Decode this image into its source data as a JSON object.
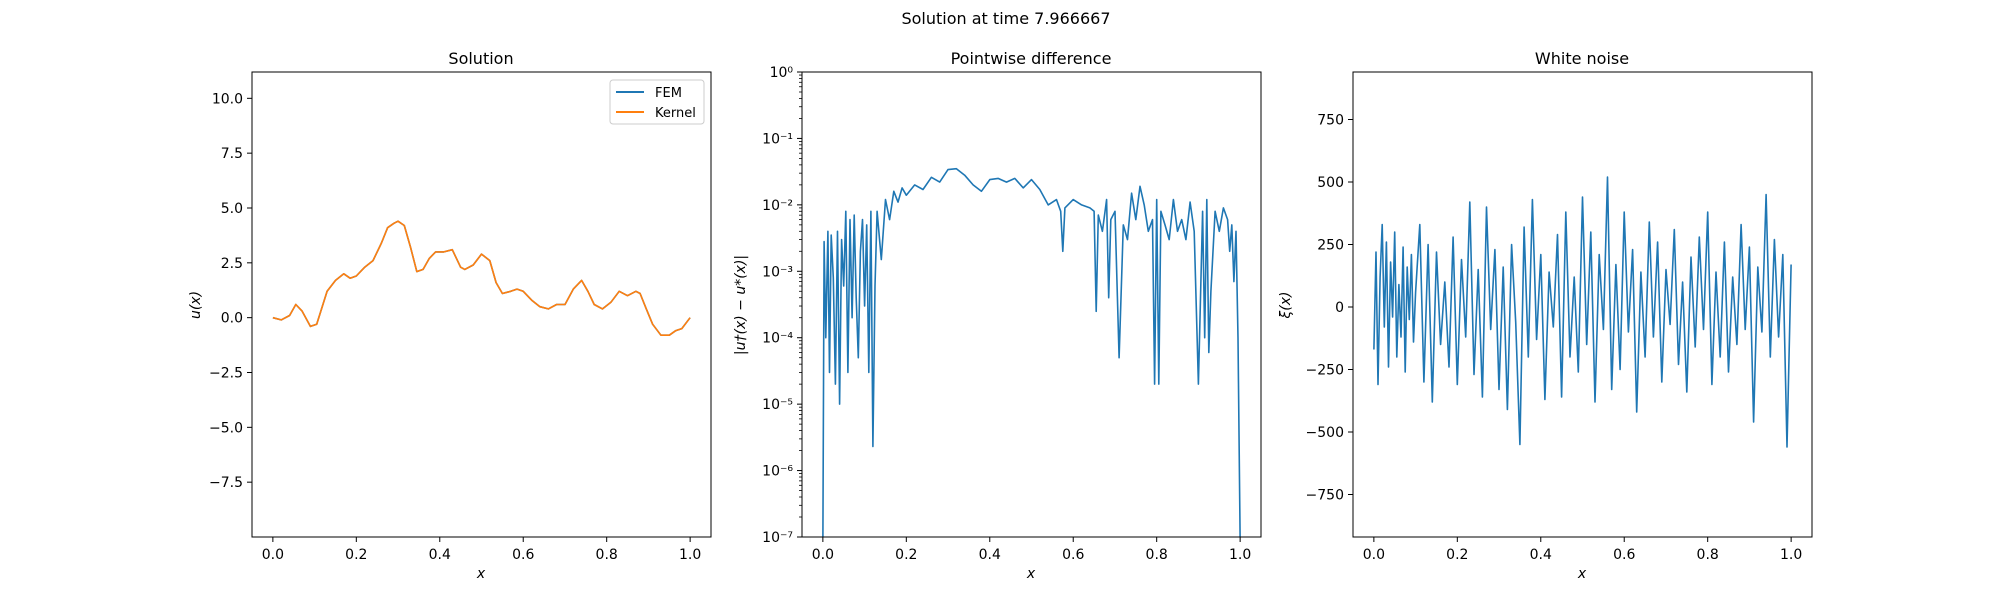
{
  "suptitle": "Solution at time 7.966667",
  "chart_data": [
    {
      "type": "line",
      "title": "Solution",
      "xlabel": "x",
      "ylabel": "u(x)",
      "xlim": [
        -0.05,
        1.05
      ],
      "ylim": [
        -10.0,
        11.2
      ],
      "xticks": [
        "0.0",
        "0.2",
        "0.4",
        "0.6",
        "0.8",
        "1.0"
      ],
      "yticks": [
        "−7.5",
        "−5.0",
        "−2.5",
        "0.0",
        "2.5",
        "5.0",
        "7.5",
        "10.0"
      ],
      "legend": "top-right",
      "x": [
        0.0,
        0.02,
        0.04,
        0.055,
        0.07,
        0.09,
        0.105,
        0.13,
        0.15,
        0.17,
        0.185,
        0.2,
        0.22,
        0.24,
        0.26,
        0.275,
        0.29,
        0.3,
        0.315,
        0.33,
        0.345,
        0.36,
        0.375,
        0.39,
        0.41,
        0.43,
        0.45,
        0.46,
        0.48,
        0.5,
        0.52,
        0.535,
        0.55,
        0.57,
        0.585,
        0.6,
        0.62,
        0.64,
        0.66,
        0.68,
        0.7,
        0.72,
        0.74,
        0.755,
        0.77,
        0.79,
        0.81,
        0.83,
        0.85,
        0.87,
        0.88,
        0.895,
        0.91,
        0.93,
        0.95,
        0.965,
        0.98,
        1.0
      ],
      "series": [
        {
          "name": "FEM",
          "color": "#1f77b4",
          "values": [
            0.0,
            -0.1,
            0.1,
            0.6,
            0.3,
            -0.4,
            -0.3,
            1.2,
            1.7,
            2.0,
            1.8,
            1.9,
            2.3,
            2.6,
            3.4,
            4.1,
            4.3,
            4.4,
            4.2,
            3.2,
            2.1,
            2.2,
            2.7,
            3.0,
            3.0,
            3.1,
            2.3,
            2.2,
            2.4,
            2.9,
            2.6,
            1.6,
            1.1,
            1.2,
            1.3,
            1.2,
            0.8,
            0.5,
            0.4,
            0.6,
            0.6,
            1.3,
            1.7,
            1.2,
            0.6,
            0.4,
            0.7,
            1.2,
            1.0,
            1.2,
            1.1,
            0.4,
            -0.3,
            -0.8,
            -0.8,
            -0.6,
            -0.5,
            0.0
          ]
        },
        {
          "name": "Kernel",
          "color": "#ff7f0e",
          "values": [
            0.0,
            -0.1,
            0.1,
            0.6,
            0.3,
            -0.4,
            -0.3,
            1.2,
            1.7,
            2.0,
            1.8,
            1.9,
            2.3,
            2.6,
            3.4,
            4.1,
            4.3,
            4.4,
            4.2,
            3.2,
            2.1,
            2.2,
            2.7,
            3.0,
            3.0,
            3.1,
            2.3,
            2.2,
            2.4,
            2.9,
            2.6,
            1.6,
            1.1,
            1.2,
            1.3,
            1.2,
            0.8,
            0.5,
            0.4,
            0.6,
            0.6,
            1.3,
            1.7,
            1.2,
            0.6,
            0.4,
            0.7,
            1.2,
            1.0,
            1.2,
            1.1,
            0.4,
            -0.3,
            -0.8,
            -0.8,
            -0.6,
            -0.5,
            0.0
          ]
        }
      ]
    },
    {
      "type": "line",
      "title": "Pointwise difference",
      "xlabel": "x",
      "ylabel": "|u†(x) − u*(x)|",
      "yscale": "log",
      "xlim": [
        -0.05,
        1.05
      ],
      "ylim": [
        1e-07,
        1
      ],
      "xticks": [
        "0.0",
        "0.2",
        "0.4",
        "0.6",
        "0.8",
        "1.0"
      ],
      "yticks": [
        "10⁻⁷",
        "10⁻⁶",
        "10⁻⁵",
        "10⁻⁴",
        "10⁻³",
        "10⁻²",
        "10⁻¹",
        "10⁰"
      ],
      "x": [
        0.0,
        0.003,
        0.007,
        0.012,
        0.016,
        0.02,
        0.025,
        0.03,
        0.035,
        0.04,
        0.045,
        0.05,
        0.055,
        0.06,
        0.065,
        0.07,
        0.075,
        0.08,
        0.085,
        0.09,
        0.095,
        0.1,
        0.105,
        0.11,
        0.115,
        0.12,
        0.125,
        0.13,
        0.14,
        0.15,
        0.16,
        0.17,
        0.18,
        0.19,
        0.2,
        0.22,
        0.24,
        0.26,
        0.28,
        0.3,
        0.32,
        0.34,
        0.36,
        0.38,
        0.4,
        0.42,
        0.44,
        0.46,
        0.48,
        0.5,
        0.52,
        0.54,
        0.56,
        0.57,
        0.575,
        0.58,
        0.6,
        0.62,
        0.64,
        0.65,
        0.655,
        0.66,
        0.67,
        0.68,
        0.685,
        0.69,
        0.7,
        0.71,
        0.72,
        0.73,
        0.74,
        0.75,
        0.76,
        0.77,
        0.78,
        0.79,
        0.795,
        0.8,
        0.805,
        0.81,
        0.82,
        0.83,
        0.84,
        0.85,
        0.86,
        0.87,
        0.88,
        0.89,
        0.9,
        0.91,
        0.915,
        0.92,
        0.925,
        0.93,
        0.94,
        0.95,
        0.96,
        0.97,
        0.975,
        0.98,
        0.985,
        0.99,
        0.995,
        1.0
      ],
      "series": [
        {
          "name": "",
          "color": "#1f77b4",
          "values": [
            1e-07,
            0.0028,
            0.0001,
            0.004,
            3e-05,
            0.0035,
            0.0008,
            2e-05,
            0.004,
            1e-05,
            0.003,
            0.0006,
            0.008,
            3e-05,
            0.006,
            0.0002,
            0.007,
            0.0004,
            5e-05,
            0.002,
            0.006,
            0.0003,
            0.005,
            3e-05,
            0.008,
            2.3e-06,
            0.0006,
            0.008,
            0.0015,
            0.012,
            0.006,
            0.016,
            0.011,
            0.018,
            0.014,
            0.02,
            0.017,
            0.026,
            0.022,
            0.034,
            0.035,
            0.028,
            0.02,
            0.016,
            0.024,
            0.025,
            0.022,
            0.025,
            0.018,
            0.024,
            0.017,
            0.01,
            0.012,
            0.008,
            0.002,
            0.009,
            0.012,
            0.01,
            0.009,
            0.008,
            0.00025,
            0.007,
            0.004,
            0.012,
            0.0004,
            0.006,
            0.008,
            5e-05,
            0.005,
            0.003,
            0.015,
            0.006,
            0.019,
            0.01,
            0.004,
            0.006,
            2e-05,
            0.012,
            2e-05,
            0.008,
            0.005,
            0.003,
            0.012,
            0.004,
            0.006,
            0.003,
            0.011,
            0.004,
            2e-05,
            0.008,
            0.0001,
            0.012,
            6e-05,
            0.0005,
            0.008,
            0.004,
            0.009,
            0.006,
            0.002,
            0.005,
            0.0007,
            0.004,
            0.0001,
            1e-07
          ]
        }
      ]
    },
    {
      "type": "line",
      "title": "White noise",
      "xlabel": "x",
      "ylabel": "ξ(x)",
      "xlim": [
        -0.05,
        1.05
      ],
      "ylim": [
        -920,
        940
      ],
      "xticks": [
        "0.0",
        "0.2",
        "0.4",
        "0.6",
        "0.8",
        "1.0"
      ],
      "yticks": [
        "−750",
        "−500",
        "−250",
        "0",
        "250",
        "500",
        "750"
      ],
      "x": [
        0.0,
        0.005,
        0.01,
        0.015,
        0.02,
        0.025,
        0.03,
        0.035,
        0.04,
        0.045,
        0.05,
        0.055,
        0.06,
        0.065,
        0.07,
        0.075,
        0.08,
        0.085,
        0.09,
        0.095,
        0.1,
        0.11,
        0.12,
        0.13,
        0.14,
        0.15,
        0.16,
        0.17,
        0.18,
        0.19,
        0.2,
        0.21,
        0.22,
        0.23,
        0.24,
        0.25,
        0.26,
        0.27,
        0.28,
        0.29,
        0.3,
        0.31,
        0.32,
        0.33,
        0.34,
        0.35,
        0.36,
        0.37,
        0.38,
        0.39,
        0.4,
        0.41,
        0.42,
        0.43,
        0.44,
        0.45,
        0.46,
        0.47,
        0.48,
        0.49,
        0.5,
        0.51,
        0.52,
        0.53,
        0.54,
        0.55,
        0.56,
        0.57,
        0.58,
        0.59,
        0.6,
        0.61,
        0.62,
        0.63,
        0.64,
        0.65,
        0.66,
        0.67,
        0.68,
        0.69,
        0.7,
        0.71,
        0.72,
        0.73,
        0.74,
        0.75,
        0.76,
        0.77,
        0.78,
        0.79,
        0.8,
        0.81,
        0.82,
        0.83,
        0.84,
        0.85,
        0.86,
        0.87,
        0.88,
        0.89,
        0.9,
        0.91,
        0.92,
        0.93,
        0.94,
        0.95,
        0.96,
        0.97,
        0.98,
        0.99,
        1.0
      ],
      "series": [
        {
          "name": "",
          "color": "#1f77b4",
          "values": [
            -170,
            220,
            -310,
            120,
            330,
            -80,
            260,
            -240,
            180,
            -40,
            300,
            -200,
            90,
            -120,
            240,
            -260,
            160,
            -50,
            210,
            -140,
            60,
            330,
            -300,
            250,
            -380,
            220,
            -150,
            100,
            -240,
            280,
            -310,
            190,
            -120,
            420,
            -270,
            150,
            -360,
            400,
            -90,
            230,
            -330,
            160,
            -410,
            250,
            -60,
            -550,
            320,
            -200,
            430,
            -130,
            210,
            -370,
            140,
            -80,
            290,
            -360,
            380,
            -200,
            120,
            -260,
            440,
            -150,
            300,
            -380,
            210,
            -90,
            520,
            -330,
            170,
            -250,
            380,
            -100,
            230,
            -420,
            140,
            -200,
            340,
            -120,
            260,
            -300,
            150,
            -70,
            310,
            -230,
            100,
            -340,
            200,
            -160,
            280,
            -90,
            380,
            -310,
            140,
            -200,
            260,
            -260,
            120,
            -150,
            330,
            -90,
            240,
            -460,
            160,
            -100,
            450,
            -200,
            270,
            -120,
            210,
            -560,
            170
          ]
        }
      ]
    }
  ]
}
